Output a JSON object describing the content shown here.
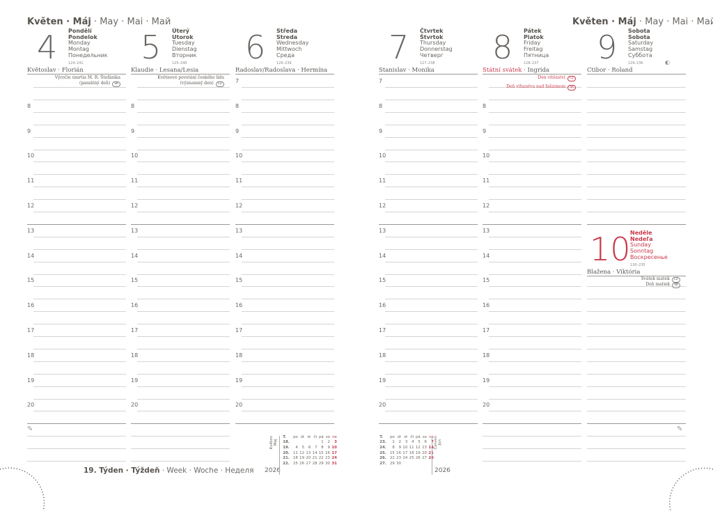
{
  "month": {
    "bold": "Květen · Máj",
    "rest": " · May · Mai · Май"
  },
  "week": {
    "bold": "19. Týden · Týždeň",
    "rest": " · Week · Woche · Неделя"
  },
  "hours": [
    "7",
    "8",
    "9",
    "10",
    "11",
    "12",
    "13",
    "14",
    "15",
    "16",
    "17",
    "18",
    "19",
    "20"
  ],
  "days": [
    {
      "num": "4",
      "cz": "Pondělí",
      "sk": "Pondelok",
      "en": "Monday",
      "de": "Montag",
      "ru": "Понедельник",
      "count": "124–241",
      "names": "Květoslav · Florián",
      "events": [
        {
          "text": "Výročie úmrtia M. R. Štefánika",
          "badge": ""
        },
        {
          "text": "(pamätný deň)",
          "badge": "SK"
        }
      ],
      "red": false
    },
    {
      "num": "5",
      "cz": "Úterý",
      "sk": "Utorok",
      "en": "Tuesday",
      "de": "Dienstag",
      "ru": "Вторник",
      "count": "125–240",
      "names": "Klaudie · Lesana/Lesia",
      "events": [
        {
          "text": "Květnové povstání českého lidu",
          "badge": ""
        },
        {
          "text": "(významný den)",
          "badge": "CZ"
        }
      ],
      "red": false
    },
    {
      "num": "6",
      "cz": "Středa",
      "sk": "Streda",
      "en": "Wednesday",
      "de": "Mittwoch",
      "ru": "Среда",
      "count": "126–239",
      "names": "Radoslav/Radoslava · Hermína",
      "events": [],
      "red": false
    },
    {
      "num": "7",
      "cz": "Čtvrtek",
      "sk": "Štvrtok",
      "en": "Thursday",
      "de": "Donnerstag",
      "ru": "Четверг",
      "count": "127–238",
      "names": "Stanislav · Monika",
      "events": [],
      "red": false
    },
    {
      "num": "8",
      "cz": "Pátek",
      "sk": "Piatok",
      "en": "Friday",
      "de": "Freitag",
      "ru": "Пятница",
      "count": "128–237",
      "names_red": "Státní svátek",
      "names": " · Ingrida",
      "events": [
        {
          "text": "Den vítězství",
          "badge": "CZ"
        },
        {
          "text": "Deň víťazstva nad fašizmom",
          "badge": "SK"
        }
      ],
      "red": false,
      "events_red": true
    },
    {
      "num": "9",
      "cz": "Sobota",
      "sk": "Sobota",
      "en": "Saturday",
      "de": "Samstag",
      "ru": "Суббота",
      "count": "129–236",
      "names": "Ctibor · Roland",
      "events": [],
      "red": false,
      "moon": "◐"
    },
    {
      "num": "10",
      "cz": "Neděle",
      "sk": "Nedeľa",
      "en": "Sunday",
      "de": "Sonntag",
      "ru": "Воскресенье",
      "count": "130–235",
      "names": "Blažena · Viktória",
      "events": [
        {
          "text": "Svátek matek",
          "badge": "CZ"
        },
        {
          "text": "Deň matiek",
          "badge": "SK"
        }
      ],
      "red": true
    }
  ],
  "mini_calendars": [
    {
      "month": "Květen",
      "month_sk": "Máj",
      "year": "2026",
      "header": [
        "T.",
        "po",
        "út",
        "st",
        "čt",
        "pá",
        "so",
        "ne"
      ],
      "rows": [
        [
          "18.",
          "",
          "",
          "",
          "",
          "1",
          "2",
          "3"
        ],
        [
          "19.",
          "4",
          "5",
          "6",
          "7",
          "8",
          "9",
          "10"
        ],
        [
          "20.",
          "11",
          "12",
          "13",
          "14",
          "15",
          "16",
          "17"
        ],
        [
          "21.",
          "18",
          "19",
          "20",
          "21",
          "22",
          "23",
          "24"
        ],
        [
          "22.",
          "25",
          "26",
          "27",
          "28",
          "29",
          "30",
          "31"
        ]
      ]
    },
    {
      "month": "Červen",
      "month_sk": "Jún",
      "year": "2026",
      "header": [
        "T.",
        "po",
        "út",
        "st",
        "čt",
        "pá",
        "so",
        "ne"
      ],
      "rows": [
        [
          "23.",
          "1",
          "2",
          "3",
          "4",
          "5",
          "6",
          "7"
        ],
        [
          "24.",
          "8",
          "9",
          "10",
          "11",
          "12",
          "13",
          "14"
        ],
        [
          "25.",
          "15",
          "16",
          "17",
          "18",
          "19",
          "20",
          "21"
        ],
        [
          "26.",
          "22",
          "23",
          "24",
          "25",
          "26",
          "27",
          "28"
        ],
        [
          "27.",
          "29",
          "30",
          "",
          "",
          "",
          "",
          ""
        ]
      ]
    }
  ],
  "colors": {
    "accent_red": "#c8384a",
    "text": "#5a5754"
  },
  "icons": [
    "pencil-icon",
    "moon-phase-icon"
  ]
}
